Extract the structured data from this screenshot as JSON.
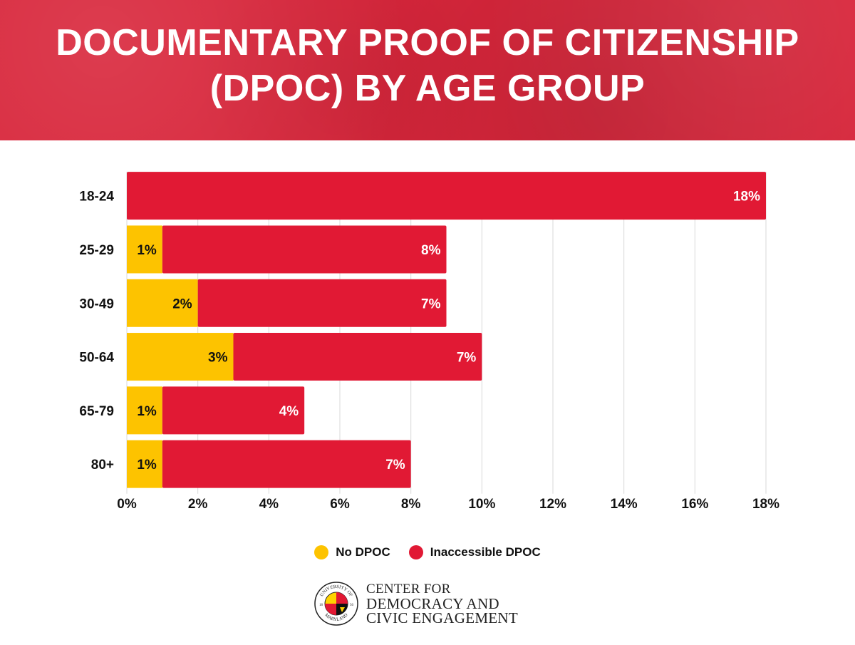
{
  "title": {
    "line1": "DOCUMENTARY PROOF OF CITIZENSHIP",
    "line2": "(DPOC) BY AGE GROUP"
  },
  "colors": {
    "banner": "#d8263b",
    "no_dpoc": "#fdc300",
    "inaccessible_dpoc": "#e11934",
    "grid": "#d9d9d9"
  },
  "chart_data": {
    "type": "bar",
    "orientation": "horizontal",
    "stacked": true,
    "categories": [
      "18-24",
      "25-29",
      "30-49",
      "50-64",
      "65-79",
      "80+"
    ],
    "series": [
      {
        "name": "No DPOC",
        "values": [
          0,
          1,
          2,
          3,
          1,
          1
        ],
        "labels": [
          "",
          "1%",
          "2%",
          "3%",
          "1%",
          "1%"
        ]
      },
      {
        "name": "Inaccessible DPOC",
        "values": [
          18,
          8,
          7,
          7,
          4,
          7
        ],
        "labels": [
          "18%",
          "8%",
          "7%",
          "7%",
          "4%",
          "7%"
        ]
      }
    ],
    "xlim": [
      0,
      18
    ],
    "xticks": [
      "0%",
      "2%",
      "4%",
      "6%",
      "8%",
      "10%",
      "12%",
      "14%",
      "16%",
      "18%"
    ],
    "grid": true,
    "legend_position": "bottom-center"
  },
  "legend": {
    "items": [
      {
        "label": "No DPOC"
      },
      {
        "label": "Inaccessible DPOC"
      }
    ]
  },
  "logo": {
    "line1": "CENTER FOR",
    "line2": "DEMOCRACY AND",
    "line3": "CIVIC ENGAGEMENT",
    "seal_text_top": "UNIVERSITY OF",
    "seal_text_bottom": "MARYLAND",
    "seal_year_left": "18",
    "seal_year_right": "56"
  }
}
